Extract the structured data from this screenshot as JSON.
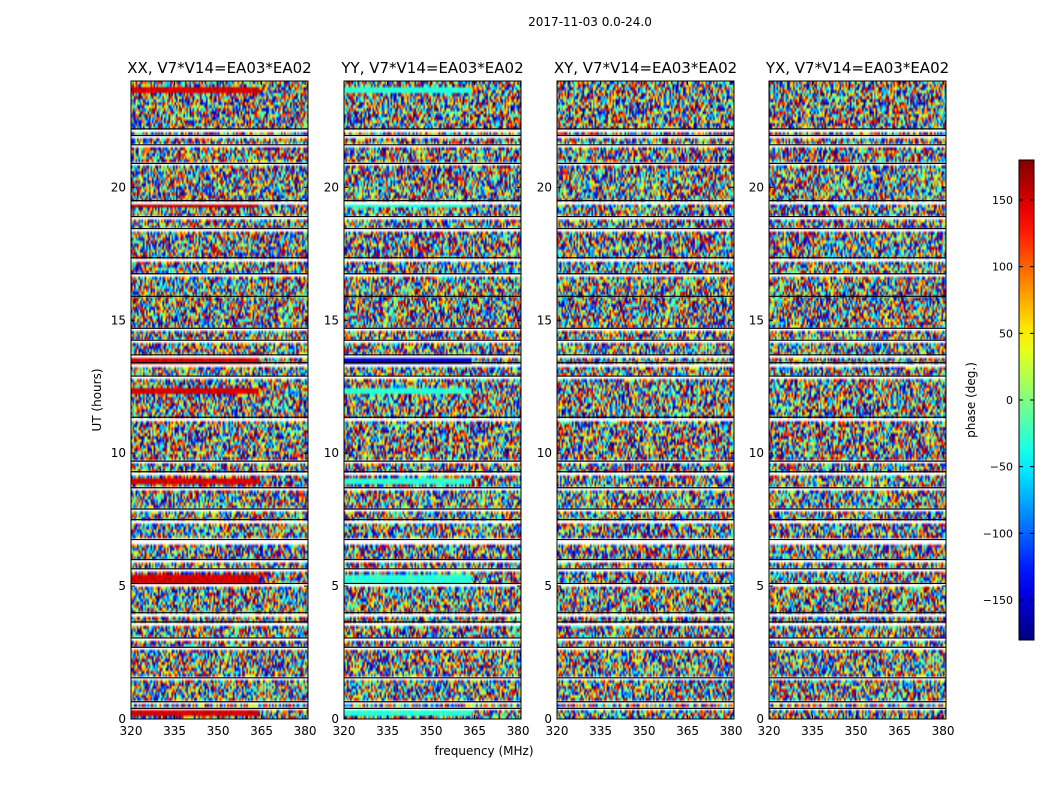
{
  "chart_data": {
    "type": "heatmap",
    "suptitle": "2017-11-03 0.0-24.0",
    "xlabel": "frequency (MHz)",
    "ylabel": "UT (hours)",
    "xlim": [
      320,
      381
    ],
    "ylim": [
      0,
      24
    ],
    "xticks": [
      320,
      335,
      350,
      365,
      380
    ],
    "yticks": [
      0,
      5,
      10,
      15,
      20
    ],
    "panels": [
      {
        "title": "XX, V7*V14=EA03*EA02",
        "pol": "XX"
      },
      {
        "title": "YY, V7*V14=EA03*EA02",
        "pol": "YY"
      },
      {
        "title": "XY, V7*V14=EA03*EA02",
        "pol": "XY"
      },
      {
        "title": "YX, V7*V14=EA03*EA02",
        "pol": "YX"
      }
    ],
    "flagged_time_ranges_hours": [
      [
        0.3,
        0.4
      ],
      [
        0.55,
        0.65
      ],
      [
        1.5,
        1.55
      ],
      [
        2.55,
        2.7
      ],
      [
        3.0,
        3.05
      ],
      [
        3.55,
        3.65
      ],
      [
        3.9,
        4.0
      ],
      [
        5.0,
        5.1
      ],
      [
        5.55,
        5.65
      ],
      [
        5.9,
        6.0
      ],
      [
        6.6,
        6.75
      ],
      [
        7.35,
        7.5
      ],
      [
        7.8,
        7.9
      ],
      [
        8.55,
        8.7
      ],
      [
        9.2,
        9.3
      ],
      [
        9.6,
        9.7
      ],
      [
        11.25,
        11.35
      ],
      [
        12.75,
        12.9
      ],
      [
        13.3,
        13.4
      ],
      [
        13.55,
        13.7
      ],
      [
        14.15,
        14.25
      ],
      [
        14.6,
        14.7
      ],
      [
        15.8,
        15.9
      ],
      [
        16.65,
        16.75
      ],
      [
        17.25,
        17.35
      ],
      [
        18.35,
        18.45
      ],
      [
        18.75,
        18.9
      ],
      [
        19.4,
        19.5
      ],
      [
        20.8,
        20.9
      ],
      [
        21.5,
        21.6
      ],
      [
        21.8,
        21.95
      ],
      [
        22.1,
        22.2
      ]
    ],
    "coherent_bands": [
      {
        "panel": "XX",
        "range": [
          0.15,
          0.35
        ],
        "phase": 150
      },
      {
        "panel": "XX",
        "range": [
          5.15,
          5.45
        ],
        "phase": 150
      },
      {
        "panel": "XX",
        "range": [
          8.8,
          9.0
        ],
        "phase": 150
      },
      {
        "panel": "XX",
        "range": [
          12.2,
          12.45
        ],
        "phase": 150
      },
      {
        "panel": "XX",
        "range": [
          13.4,
          13.6
        ],
        "phase": 150
      },
      {
        "panel": "XX",
        "range": [
          19.3,
          19.4
        ],
        "phase": 160
      },
      {
        "panel": "XX",
        "range": [
          23.6,
          23.8
        ],
        "phase": 150
      },
      {
        "panel": "YY",
        "range": [
          0.15,
          0.35
        ],
        "phase": -30
      },
      {
        "panel": "YY",
        "range": [
          5.15,
          5.45
        ],
        "phase": -30
      },
      {
        "panel": "YY",
        "range": [
          8.8,
          9.0
        ],
        "phase": -30
      },
      {
        "panel": "YY",
        "range": [
          12.2,
          12.45
        ],
        "phase": -30
      },
      {
        "panel": "YY",
        "range": [
          13.4,
          13.6
        ],
        "phase": -150
      },
      {
        "panel": "YY",
        "range": [
          19.3,
          19.4
        ],
        "phase": -30
      },
      {
        "panel": "YY",
        "range": [
          23.6,
          23.8
        ],
        "phase": -30
      }
    ],
    "colorbar": {
      "label": "phase (deg.)",
      "range": [
        -180,
        180
      ],
      "ticks": [
        -150,
        -100,
        -50,
        0,
        50,
        100,
        150
      ],
      "tick_labels": [
        "−150",
        "−100",
        "−50",
        "0",
        "50",
        "100",
        "150"
      ],
      "colormap": "jet"
    }
  }
}
